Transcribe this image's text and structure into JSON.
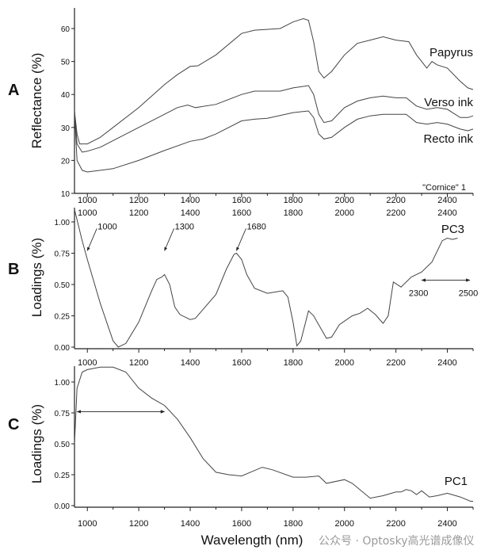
{
  "chart_data": [
    {
      "panel": "A",
      "type": "line",
      "ylabel": "Reflectance  (%)",
      "xlabel": "",
      "xlim": [
        950,
        2500
      ],
      "ylim": [
        10,
        66
      ],
      "xticks": [
        1000,
        1200,
        1400,
        1600,
        1800,
        2000,
        2200,
        2400
      ],
      "yticks": [
        10,
        20,
        30,
        40,
        50,
        60
      ],
      "annotation": "\"Cornice\" 1",
      "series": [
        {
          "name": "Papyrus",
          "points": [
            [
              950,
              35
            ],
            [
              960,
              28
            ],
            [
              970,
              25
            ],
            [
              1000,
              25
            ],
            [
              1050,
              27
            ],
            [
              1100,
              30
            ],
            [
              1200,
              36
            ],
            [
              1300,
              43
            ],
            [
              1350,
              46
            ],
            [
              1400,
              48.5
            ],
            [
              1430,
              48.7
            ],
            [
              1500,
              52
            ],
            [
              1600,
              58.5
            ],
            [
              1650,
              59.5
            ],
            [
              1750,
              60
            ],
            [
              1800,
              62
            ],
            [
              1840,
              63
            ],
            [
              1860,
              62.5
            ],
            [
              1880,
              56
            ],
            [
              1900,
              47
            ],
            [
              1920,
              45
            ],
            [
              1950,
              47
            ],
            [
              2000,
              52
            ],
            [
              2050,
              55.5
            ],
            [
              2100,
              56.5
            ],
            [
              2150,
              57.5
            ],
            [
              2200,
              56.5
            ],
            [
              2250,
              56
            ],
            [
              2280,
              52
            ],
            [
              2300,
              50
            ],
            [
              2320,
              48
            ],
            [
              2340,
              50
            ],
            [
              2360,
              49
            ],
            [
              2400,
              48
            ],
            [
              2450,
              44
            ],
            [
              2480,
              42
            ],
            [
              2500,
              41.5
            ]
          ]
        },
        {
          "name": "Verso ink",
          "points": [
            [
              950,
              35
            ],
            [
              960,
              25
            ],
            [
              980,
              22.5
            ],
            [
              1000,
              22.8
            ],
            [
              1050,
              24
            ],
            [
              1100,
              26
            ],
            [
              1200,
              30
            ],
            [
              1300,
              34
            ],
            [
              1350,
              36
            ],
            [
              1390,
              36.8
            ],
            [
              1420,
              36
            ],
            [
              1500,
              37
            ],
            [
              1600,
              40
            ],
            [
              1650,
              41
            ],
            [
              1750,
              41
            ],
            [
              1800,
              42
            ],
            [
              1860,
              42.7
            ],
            [
              1880,
              40
            ],
            [
              1900,
              34
            ],
            [
              1920,
              31.5
            ],
            [
              1950,
              32
            ],
            [
              2000,
              36
            ],
            [
              2050,
              38
            ],
            [
              2100,
              39
            ],
            [
              2150,
              39.5
            ],
            [
              2200,
              39
            ],
            [
              2240,
              39
            ],
            [
              2280,
              36.5
            ],
            [
              2320,
              35.5
            ],
            [
              2360,
              36
            ],
            [
              2400,
              35.5
            ],
            [
              2450,
              33
            ],
            [
              2480,
              33
            ],
            [
              2500,
              33.5
            ]
          ]
        },
        {
          "name": "Recto ink",
          "points": [
            [
              950,
              35
            ],
            [
              960,
              20
            ],
            [
              980,
              17
            ],
            [
              1000,
              16.5
            ],
            [
              1050,
              17
            ],
            [
              1100,
              17.5
            ],
            [
              1200,
              20
            ],
            [
              1300,
              23
            ],
            [
              1400,
              25.8
            ],
            [
              1450,
              26.5
            ],
            [
              1500,
              28
            ],
            [
              1600,
              32
            ],
            [
              1650,
              32.5
            ],
            [
              1700,
              32.8
            ],
            [
              1800,
              34.5
            ],
            [
              1860,
              35
            ],
            [
              1880,
              33
            ],
            [
              1900,
              28
            ],
            [
              1920,
              26.5
            ],
            [
              1950,
              27
            ],
            [
              2000,
              30
            ],
            [
              2050,
              32.5
            ],
            [
              2100,
              33.5
            ],
            [
              2150,
              34
            ],
            [
              2200,
              34
            ],
            [
              2240,
              34
            ],
            [
              2280,
              31.5
            ],
            [
              2320,
              31
            ],
            [
              2360,
              31.5
            ],
            [
              2400,
              31
            ],
            [
              2450,
              29.5
            ],
            [
              2480,
              29
            ],
            [
              2500,
              29.5
            ]
          ]
        }
      ]
    },
    {
      "panel": "B",
      "type": "line",
      "ylabel": "Loadings  (%)",
      "xlim": [
        950,
        2500
      ],
      "ylim": [
        0,
        1.12
      ],
      "xticks": [
        1000,
        1200,
        1400,
        1600,
        1800,
        2000,
        2200,
        2400
      ],
      "yticks": [
        "0.00",
        "0.25",
        "0.50",
        "0.75",
        "1.00"
      ],
      "series": [
        {
          "name": "PC3",
          "points": [
            [
              950,
              1.1
            ],
            [
              980,
              0.85
            ],
            [
              1000,
              0.7
            ],
            [
              1050,
              0.35
            ],
            [
              1100,
              0.05
            ],
            [
              1120,
              0.0
            ],
            [
              1150,
              0.03
            ],
            [
              1200,
              0.2
            ],
            [
              1250,
              0.45
            ],
            [
              1270,
              0.54
            ],
            [
              1290,
              0.56
            ],
            [
              1300,
              0.58
            ],
            [
              1320,
              0.5
            ],
            [
              1340,
              0.32
            ],
            [
              1360,
              0.26
            ],
            [
              1400,
              0.22
            ],
            [
              1420,
              0.23
            ],
            [
              1500,
              0.42
            ],
            [
              1540,
              0.62
            ],
            [
              1570,
              0.74
            ],
            [
              1580,
              0.75
            ],
            [
              1600,
              0.7
            ],
            [
              1620,
              0.58
            ],
            [
              1650,
              0.47
            ],
            [
              1700,
              0.43
            ],
            [
              1730,
              0.44
            ],
            [
              1760,
              0.45
            ],
            [
              1780,
              0.4
            ],
            [
              1800,
              0.2
            ],
            [
              1815,
              0.01
            ],
            [
              1830,
              0.05
            ],
            [
              1860,
              0.29
            ],
            [
              1880,
              0.25
            ],
            [
              1930,
              0.07
            ],
            [
              1950,
              0.08
            ],
            [
              1980,
              0.18
            ],
            [
              2030,
              0.25
            ],
            [
              2060,
              0.27
            ],
            [
              2090,
              0.31
            ],
            [
              2120,
              0.26
            ],
            [
              2150,
              0.19
            ],
            [
              2170,
              0.25
            ],
            [
              2190,
              0.52
            ],
            [
              2220,
              0.48
            ],
            [
              2260,
              0.56
            ],
            [
              2300,
              0.6
            ],
            [
              2340,
              0.68
            ],
            [
              2380,
              0.85
            ],
            [
              2400,
              0.87
            ],
            [
              2420,
              0.86
            ],
            [
              2440,
              0.87
            ]
          ]
        }
      ],
      "annotations": [
        {
          "text": "1000",
          "x": 1000,
          "y": 0.77
        },
        {
          "text": "1300",
          "x": 1300,
          "y": 0.77
        },
        {
          "text": "1680",
          "x": 1580,
          "y": 0.77
        }
      ],
      "range_arrow": {
        "from": 2300,
        "to": 2500,
        "y": 0.56,
        "labels": [
          "2300",
          "2500"
        ]
      }
    },
    {
      "panel": "C",
      "type": "line",
      "ylabel": "Loadings  (%)",
      "xlabel": "Wavelength  (nm)",
      "xlim": [
        950,
        2500
      ],
      "ylim": [
        0,
        1.13
      ],
      "xticks": [
        1000,
        1200,
        1400,
        1600,
        1800,
        2000,
        2200,
        2400
      ],
      "yticks": [
        "0.00",
        "0.25",
        "0.50",
        "0.75",
        "1.00"
      ],
      "series": [
        {
          "name": "PC1",
          "points": [
            [
              950,
              0.5
            ],
            [
              960,
              0.95
            ],
            [
              980,
              1.08
            ],
            [
              1000,
              1.1
            ],
            [
              1050,
              1.12
            ],
            [
              1100,
              1.12
            ],
            [
              1150,
              1.08
            ],
            [
              1200,
              0.95
            ],
            [
              1250,
              0.87
            ],
            [
              1300,
              0.81
            ],
            [
              1350,
              0.7
            ],
            [
              1400,
              0.55
            ],
            [
              1450,
              0.38
            ],
            [
              1500,
              0.27
            ],
            [
              1550,
              0.25
            ],
            [
              1600,
              0.24
            ],
            [
              1680,
              0.31
            ],
            [
              1720,
              0.29
            ],
            [
              1800,
              0.23
            ],
            [
              1850,
              0.23
            ],
            [
              1900,
              0.24
            ],
            [
              1930,
              0.18
            ],
            [
              2000,
              0.21
            ],
            [
              2030,
              0.18
            ],
            [
              2100,
              0.06
            ],
            [
              2150,
              0.08
            ],
            [
              2200,
              0.11
            ],
            [
              2220,
              0.11
            ],
            [
              2240,
              0.13
            ],
            [
              2260,
              0.12
            ],
            [
              2280,
              0.09
            ],
            [
              2300,
              0.12
            ],
            [
              2330,
              0.07
            ],
            [
              2360,
              0.08
            ],
            [
              2400,
              0.1
            ],
            [
              2450,
              0.07
            ],
            [
              2490,
              0.035
            ],
            [
              2500,
              0.035
            ]
          ]
        }
      ],
      "range_arrow": {
        "from": 960,
        "to": 1300,
        "y": 0.76
      }
    }
  ],
  "watermark": "公众号 · Optosky高光谱成像仪"
}
